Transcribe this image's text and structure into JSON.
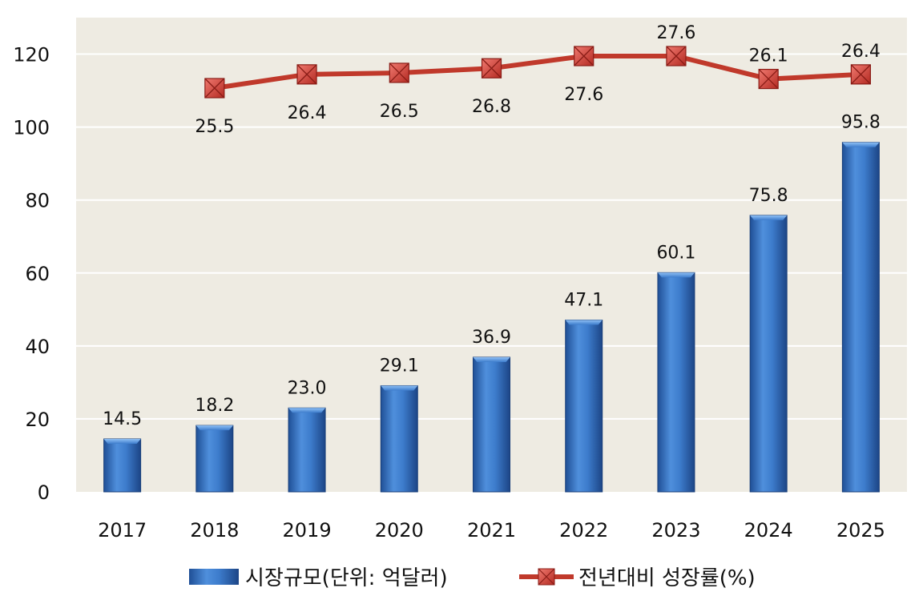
{
  "chart_data": {
    "type": "bar",
    "categories": [
      "2017",
      "2018",
      "2019",
      "2020",
      "2021",
      "2022",
      "2023",
      "2024",
      "2025"
    ],
    "ylim": [
      0,
      130
    ],
    "yticks": [
      0,
      20,
      40,
      60,
      80,
      100,
      120
    ],
    "grid": true,
    "legend": "bottom",
    "series": [
      {
        "name": "시장규모(단위: 억달러)",
        "type": "bar",
        "color": "#3a78c8",
        "values": [
          14.5,
          18.2,
          23.0,
          29.1,
          36.9,
          47.1,
          60.1,
          75.8,
          95.8
        ],
        "labels": [
          "14.5",
          "18.2",
          "23.0",
          "29.1",
          "36.9",
          "47.1",
          "60.1",
          "75.8",
          "95.8"
        ]
      },
      {
        "name": "전년대비 성장률(%)",
        "type": "line",
        "color": "#c0392b",
        "marker_color": "#d9342b",
        "values": [
          null,
          25.5,
          26.4,
          26.5,
          26.8,
          27.6,
          27.6,
          26.1,
          26.4
        ],
        "labels": [
          "",
          "25.5",
          "26.4",
          "26.5",
          "26.8",
          "27.6",
          "27.6",
          "26.1",
          "26.4"
        ],
        "label_position": [
          "below",
          "below",
          "below",
          "below",
          "below",
          "below",
          "above",
          "above",
          "above"
        ]
      }
    ]
  }
}
